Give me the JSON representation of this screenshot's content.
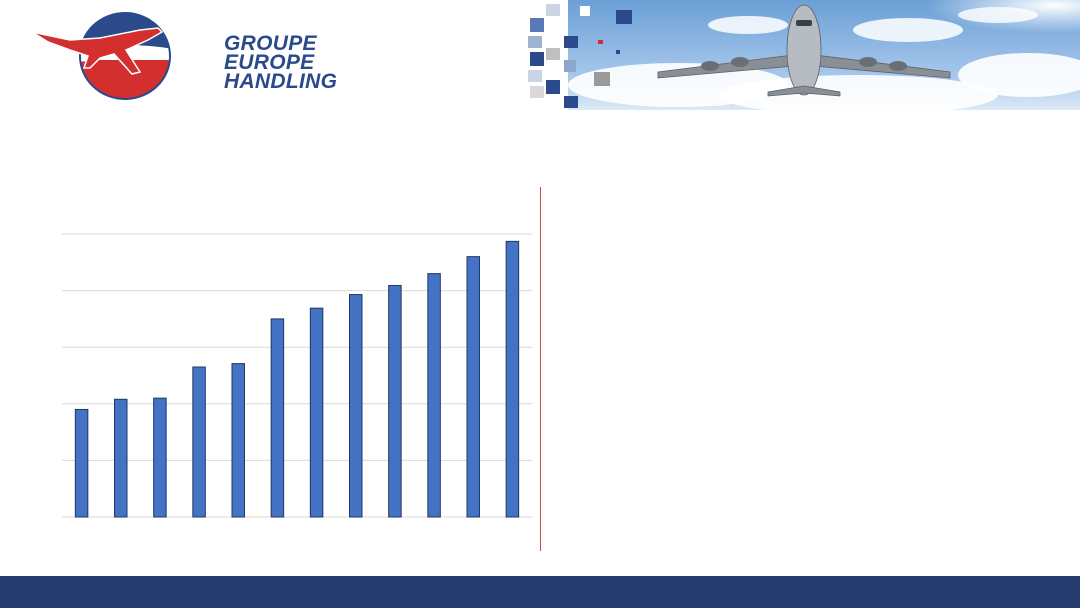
{
  "brand": {
    "line1": "GROUPE",
    "line2": "EUROPE",
    "line3": "HANDLING",
    "color": "#2a4a8c",
    "accent": "#d32f2f"
  },
  "banner": {
    "image": "airplane-in-sky-photo"
  },
  "chart_data": {
    "type": "bar",
    "categories": [
      "",
      "",
      "",
      "",
      "",
      "",
      "",
      "",
      "",
      "",
      "",
      ""
    ],
    "values": [
      1.9,
      2.08,
      2.1,
      2.65,
      2.71,
      3.5,
      3.69,
      3.93,
      4.09,
      4.3,
      4.6,
      4.87
    ],
    "ylim": [
      0,
      5
    ],
    "grid": true,
    "bar_color": "#4472c4"
  },
  "footer": {
    "color": "#263b6e"
  }
}
